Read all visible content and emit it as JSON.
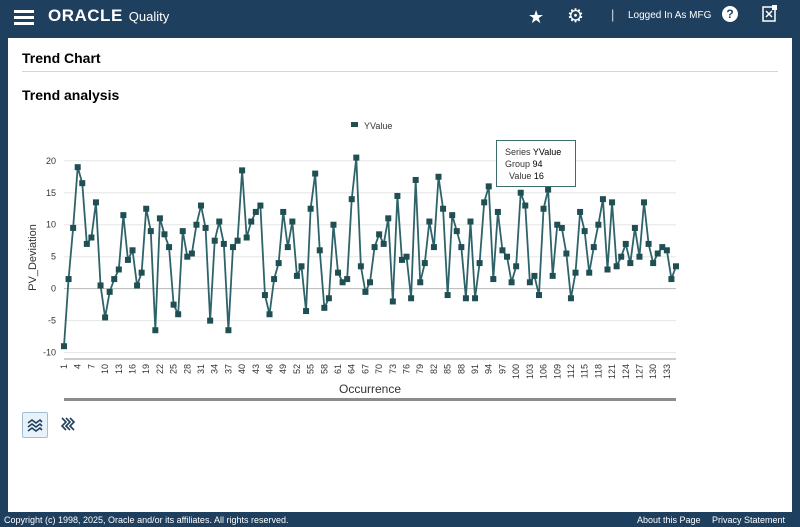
{
  "app": {
    "brand": "ORACLE",
    "brand_sub": "Quality",
    "divider": "|",
    "user_label": "Logged In As MFG",
    "help_glyph": "?"
  },
  "page": {
    "title": "Trend Chart",
    "section_title": "Trend analysis"
  },
  "tooltip": {
    "series_label": "Series",
    "series_value": "YValue",
    "group_label": "Group",
    "group_value": "94",
    "value_label": "Value",
    "value_value": "16"
  },
  "footer": {
    "copyright": "Copyright (c) 1998, 2025, Oracle and/or its affiliates. All rights reserved.",
    "about": "About this Page",
    "privacy": "Privacy Statement"
  },
  "colors": {
    "header": "#1f3f5e",
    "series": "#2e6469",
    "marker": "#1f4f52"
  },
  "chart_data": {
    "type": "line",
    "title": "",
    "xlabel": "Occurrence",
    "ylabel": "PV_Deviation",
    "legend": [
      "YValue"
    ],
    "legend_position": "top-center",
    "ylim": [
      -11,
      22
    ],
    "yticks": [
      -10,
      -5,
      0,
      5,
      10,
      15,
      20
    ],
    "xticks": [
      1,
      4,
      7,
      10,
      13,
      16,
      19,
      22,
      25,
      28,
      31,
      34,
      37,
      40,
      43,
      46,
      49,
      52,
      55,
      58,
      61,
      64,
      67,
      70,
      73,
      76,
      79,
      82,
      85,
      88,
      91,
      94,
      97,
      100,
      103,
      106,
      109,
      112,
      115,
      118,
      121,
      124,
      127,
      130,
      133
    ],
    "x_start": 1,
    "series": [
      {
        "name": "YValue",
        "values": [
          -9,
          1.5,
          9.5,
          19,
          16.5,
          7,
          8,
          13.5,
          0.5,
          -4.5,
          -0.5,
          1.5,
          3,
          11.5,
          4.5,
          6,
          0.5,
          2.5,
          12.5,
          9,
          -6.5,
          11,
          8.5,
          6.5,
          -2.5,
          -4,
          9,
          5,
          5.5,
          10,
          13,
          9.5,
          -5,
          7.5,
          10.5,
          7,
          -6.5,
          6.5,
          7.5,
          18.5,
          8,
          10.5,
          12,
          13,
          -1,
          -4,
          1.5,
          4,
          12,
          6.5,
          10.5,
          2,
          3.5,
          -3.5,
          12.5,
          18,
          6,
          -3,
          -1.5,
          10,
          2.5,
          1,
          1.5,
          14,
          20.5,
          3.5,
          -0.5,
          1,
          6.5,
          8.5,
          7,
          11,
          -2,
          14.5,
          4.5,
          5,
          -1.5,
          17,
          1,
          4,
          10.5,
          6.5,
          17.5,
          12.5,
          -1,
          11.5,
          9,
          6.5,
          -1.5,
          10.5,
          -1.5,
          4,
          13.5,
          16,
          1.5,
          12,
          6,
          5,
          1,
          3.5,
          15,
          13,
          1,
          2,
          -1,
          12.5,
          15.5,
          2,
          10,
          9.5,
          5.5,
          -1.5,
          2.5,
          12,
          9,
          2.5,
          6.5,
          10,
          14,
          3,
          13.5,
          3.5,
          5,
          7,
          4,
          9.5,
          5,
          13.5,
          7,
          4,
          5.5,
          6.5,
          6,
          1.5,
          3.5
        ]
      }
    ]
  }
}
